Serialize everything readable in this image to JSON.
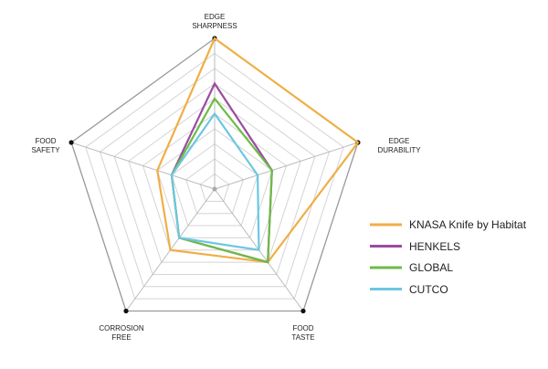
{
  "chart_data": {
    "type": "radar",
    "categories": [
      "EDGE\nSHARPNESS",
      "EDGE\nDURABILITY",
      "FOOD\nTASTE",
      "CORROSION\nFREE",
      "FOOD\nSAFETY"
    ],
    "rlim": [
      0,
      10
    ],
    "rticks": [
      1,
      2,
      3,
      4,
      5,
      6,
      7,
      8,
      9,
      10
    ],
    "grid": true,
    "legend": "right",
    "series": [
      {
        "name": "KNASA Knife by Habitat",
        "color": "#f0ae45",
        "values": [
          10,
          10,
          6,
          5,
          4
        ]
      },
      {
        "name": "HENKELS",
        "color": "#9b4ba3",
        "values": [
          7,
          4,
          6,
          4,
          3
        ]
      },
      {
        "name": "GLOBAL",
        "color": "#6dbb45",
        "values": [
          6,
          4,
          6,
          4,
          3
        ]
      },
      {
        "name": "CUTCO",
        "color": "#6cc7e0",
        "values": [
          5,
          3,
          5,
          4,
          3
        ]
      }
    ]
  }
}
